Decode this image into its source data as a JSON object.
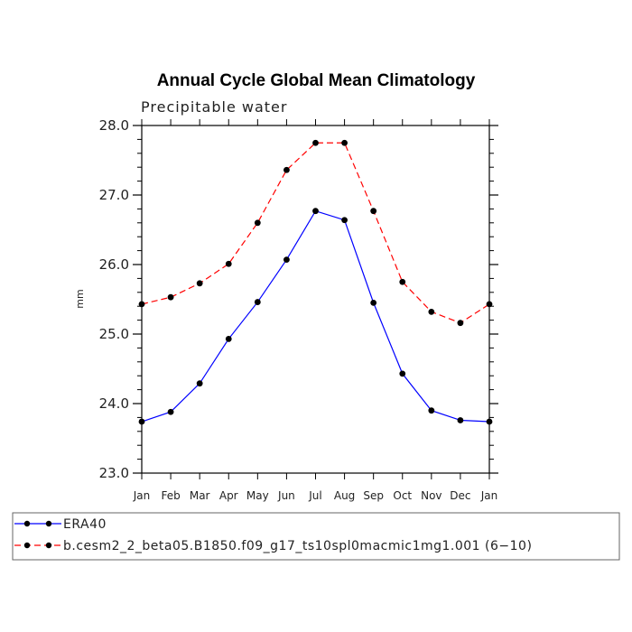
{
  "chart_data": {
    "type": "line",
    "title": "Annual Cycle Global Mean Climatology",
    "subtitle": "Precipitable water",
    "xlabel": "",
    "ylabel": "mm",
    "ylim": [
      23.0,
      28.0
    ],
    "y_ticks": [
      "23.0",
      "24.0",
      "25.0",
      "26.0",
      "27.0",
      "28.0"
    ],
    "categories": [
      "Jan",
      "Feb",
      "Mar",
      "Apr",
      "May",
      "Jun",
      "Jul",
      "Aug",
      "Sep",
      "Oct",
      "Nov",
      "Dec",
      "Jan"
    ],
    "series": [
      {
        "name": "ERA40",
        "color": "#0000ff",
        "dash": "solid",
        "values": [
          23.74,
          23.88,
          24.29,
          24.93,
          25.46,
          26.07,
          26.77,
          26.64,
          25.45,
          24.43,
          23.9,
          23.76,
          23.74
        ]
      },
      {
        "name": "b.cesm2_2_beta05.B1850.f09_g17_ts10spl0macmic1mg1.001 (6−10)",
        "color": "#ff0000",
        "dash": "dashed",
        "values": [
          25.43,
          25.53,
          25.73,
          26.01,
          26.6,
          27.36,
          27.75,
          27.75,
          26.77,
          25.75,
          25.32,
          25.16,
          25.43
        ]
      }
    ]
  }
}
